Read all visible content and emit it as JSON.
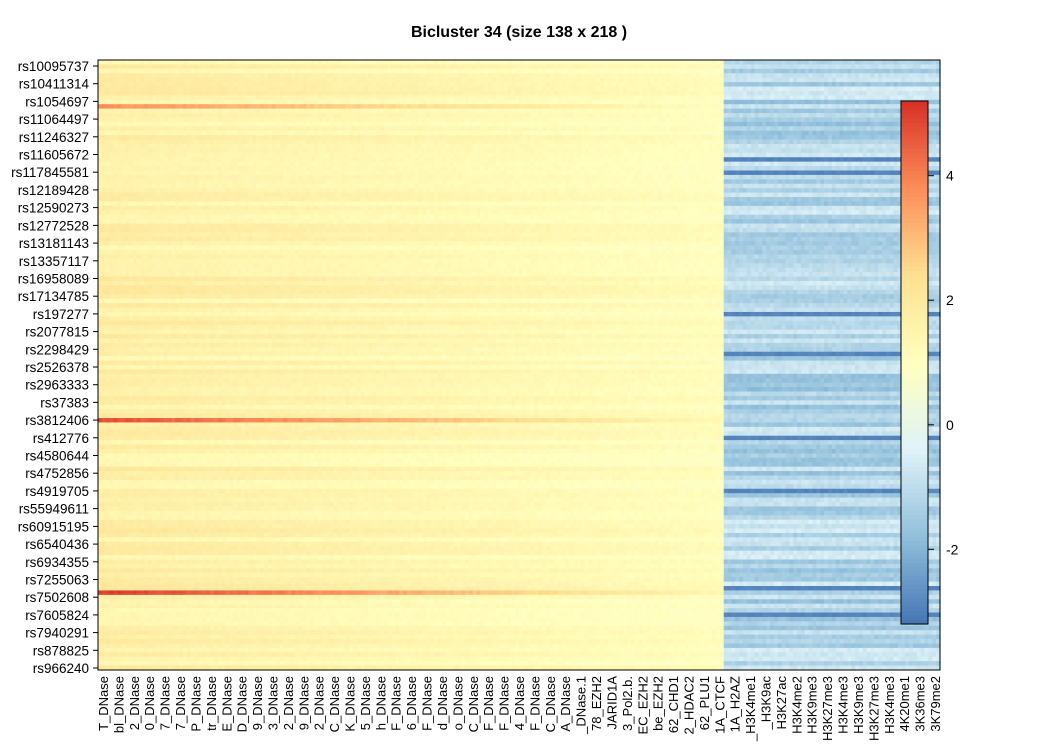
{
  "chart_data": {
    "type": "heatmap",
    "title": "Bicluster  34  (size  138 x 218 )",
    "row_labels": [
      "rs10095737",
      "rs10411314",
      "rs1054697",
      "rs11064497",
      "rs11246327",
      "rs11605672",
      "rs117845581",
      "rs12189428",
      "rs12590273",
      "rs12772528",
      "rs13181143",
      "rs13357117",
      "rs16958089",
      "rs17134785",
      "rs197277",
      "rs2077815",
      "rs2298429",
      "rs2526378",
      "rs2963333",
      "rs37383",
      "rs3812406",
      "rs412776",
      "rs4580644",
      "rs4752856",
      "rs4919705",
      "rs55949611",
      "rs60915195",
      "rs6540436",
      "rs6934355",
      "rs7255063",
      "rs7502608",
      "rs7605824",
      "rs7940291",
      "rs878825",
      "rs966240"
    ],
    "col_labels": [
      "T_DNase",
      "bl_DNase",
      "2_DNase",
      "0_DNase",
      "7_DNase",
      "7_DNase",
      "P_DNase",
      "tr_DNase",
      "E_DNase",
      "D_DNase",
      "9_DNase",
      "3_DNase",
      "2_DNase",
      "9_DNase",
      "2_DNase",
      "C_DNase",
      "K_DNase",
      "5_DNase",
      "h_DNase",
      "F_DNase",
      "6_DNase",
      "F_DNase",
      "d_DNase",
      "o_DNase",
      "C_DNase",
      "F_DNase",
      "F_DNase",
      "4_DNase",
      "F_DNase",
      "C_DNase",
      "A_DNase",
      "_DNase.1",
      "78_EZH2",
      "JARID1A",
      "3_Pol2.b.",
      "EC_EZH2",
      "be_EZH2",
      "62_CHD1",
      "2_HDAC2",
      "62_PLU1",
      "1A_CTCF",
      "1A_H2AZ",
      "_H3K4me1",
      "_H3K9ac",
      "H3K27ac",
      "H3K4me2",
      "H3K9me3",
      "H3K27me3",
      "H3K4me3",
      "H3K9me3",
      "H3K27me3",
      "H3K4me3",
      "4K20me1",
      "3K36me3",
      "3K79me2"
    ],
    "n_rows_drawn": 138,
    "n_cols_drawn": 218,
    "highlight_rows": [
      {
        "label": "rs1054697",
        "peak": 3.6
      },
      {
        "label": "rs3812406",
        "peak": 4.6
      },
      {
        "label": "rs7502608",
        "peak": 4.9
      }
    ],
    "left_block_value_range": [
      0.2,
      2.5
    ],
    "right_block_value_range": [
      -3.0,
      -0.3
    ],
    "colorbar": {
      "range": [
        -3.2,
        5.2
      ],
      "ticks": [
        "-2",
        "0",
        "2",
        "4"
      ],
      "tick_values": [
        -2,
        0,
        2,
        4
      ],
      "colors": [
        "#4575b4",
        "#91bfdb",
        "#e0f3f8",
        "#ffffbf",
        "#fee090",
        "#fc8d59",
        "#d73027"
      ]
    }
  }
}
